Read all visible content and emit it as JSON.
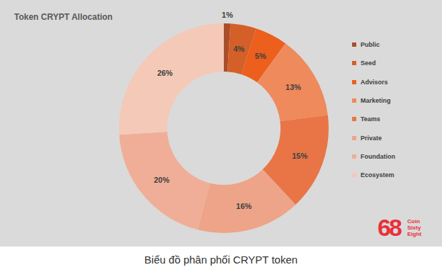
{
  "chart_data": {
    "type": "pie",
    "title": "Token CRYPT Allocation",
    "caption": "Biểu đồ phân phối CRYPT token",
    "categories": [
      "Public",
      "Seed",
      "Advisors",
      "Marketing",
      "Teams",
      "Private",
      "Foundation",
      "Ecosystem"
    ],
    "values": [
      1,
      4,
      5,
      13,
      15,
      16,
      20,
      26
    ],
    "value_labels": [
      "1%",
      "4%",
      "5%",
      "13%",
      "15%",
      "16%",
      "20%",
      "26%"
    ],
    "colors": [
      "#a94e2c",
      "#d55f28",
      "#ec5f1c",
      "#ef8a5c",
      "#e97547",
      "#eea488",
      "#f0ae98",
      "#f4c9b7"
    ],
    "data_labels": true,
    "legend": "right",
    "annotations": [
      "68",
      "Coin",
      "Sixty",
      "Eight"
    ]
  }
}
